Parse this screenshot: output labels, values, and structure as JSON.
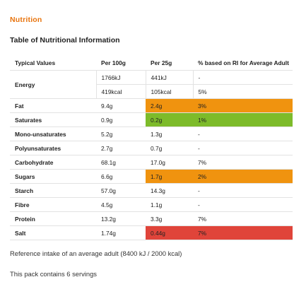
{
  "heading": "Nutrition",
  "subtitle": "Table of Nutritional Information",
  "table": {
    "header": [
      "Typical Values",
      "Per 100g",
      "Per 25g",
      "% based on RI for Average Adult"
    ],
    "energy": {
      "label": "Energy",
      "rows": [
        [
          "1766kJ",
          "441kJ",
          "-"
        ],
        [
          "419kcal",
          "105kcal",
          "5%"
        ]
      ]
    },
    "rows": [
      [
        "Fat",
        "9.4g",
        "2.4g",
        "3%"
      ],
      [
        "Saturates",
        "0.9g",
        "0.2g",
        "1%"
      ],
      [
        "Mono-unsaturates",
        "5.2g",
        "1.3g",
        "-"
      ],
      [
        "Polyunsaturates",
        "2.7g",
        "0.7g",
        "-"
      ],
      [
        "Carbohydrate",
        "68.1g",
        "17.0g",
        "7%"
      ],
      [
        "Sugars",
        "6.6g",
        "1.7g",
        "2%"
      ],
      [
        "Starch",
        "57.0g",
        "14.3g",
        "-"
      ],
      [
        "Fibre",
        "4.5g",
        "1.1g",
        "-"
      ],
      [
        "Protein",
        "13.2g",
        "3.3g",
        "7%"
      ],
      [
        "Salt",
        "1.74g",
        "0.44g",
        "7%"
      ]
    ]
  },
  "notes": [
    "Reference intake of an average adult (8400 kJ / 2000 kcal)",
    "This pack contains 6 servings"
  ]
}
